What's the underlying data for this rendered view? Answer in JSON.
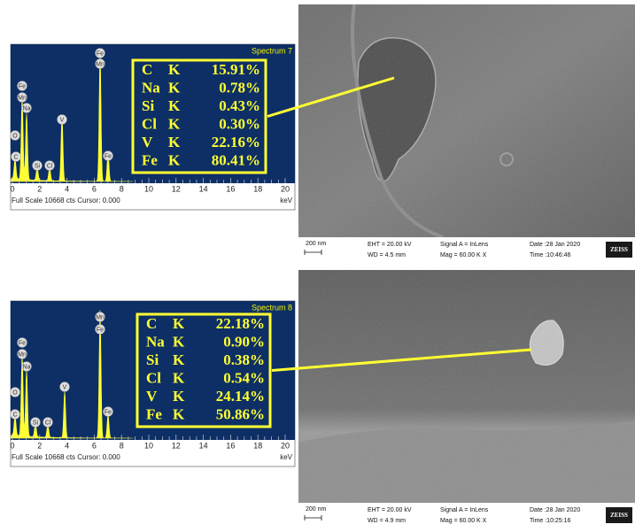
{
  "panels": [
    {
      "spectrum": {
        "title": "Spectrum 7",
        "peak_labels": [
          "Fe",
          "Mn",
          "Fe",
          "Mn",
          "Na",
          "O",
          "C",
          "Si",
          "Cl",
          "V",
          "Fe"
        ],
        "axis_ticks": [
          "0",
          "2",
          "4",
          "6",
          "8",
          "10",
          "12",
          "14",
          "16",
          "18",
          "20"
        ],
        "axis_unit": "keV",
        "footer": "Full Scale 10668 cts Cursor: 0.000"
      },
      "composition": [
        [
          "C",
          "K",
          "15.91%"
        ],
        [
          "Na",
          "K",
          "0.78%"
        ],
        [
          "Si",
          "K",
          "0.43%"
        ],
        [
          "Cl",
          "K",
          "0.30%"
        ],
        [
          "V",
          "K",
          "22.16%"
        ],
        [
          "Fe",
          "K",
          "80.41%"
        ]
      ],
      "sem": {
        "scale_bar": "200 nm",
        "eht": "EHT = 20.00 kV",
        "wd": "WD = 4.5 mm",
        "signal": "Signal A = InLens",
        "mag": "Mag =  60.00 K X",
        "date": "Date :28 Jan 2020",
        "time": "Time :10:46:46",
        "brand": "ZEISS"
      }
    },
    {
      "spectrum": {
        "title": "Spectrum 8",
        "peak_labels": [
          "Mn",
          "Fe",
          "Fe",
          "Mn",
          "Na",
          "O",
          "C",
          "Si",
          "Cl",
          "V",
          "Fe"
        ],
        "axis_ticks": [
          "0",
          "2",
          "4",
          "6",
          "8",
          "10",
          "12",
          "14",
          "16",
          "18",
          "20"
        ],
        "axis_unit": "keV",
        "footer": "Full Scale 10668 cts Cursor: 0.000"
      },
      "composition": [
        [
          "C",
          "K",
          "22.18%"
        ],
        [
          "Na",
          "K",
          "0.90%"
        ],
        [
          "Si",
          "K",
          "0.38%"
        ],
        [
          "Cl",
          "K",
          "0.54%"
        ],
        [
          "V",
          "K",
          "24.14%"
        ],
        [
          "Fe",
          "K",
          "50.86%"
        ]
      ],
      "sem": {
        "scale_bar": "200 nm",
        "eht": "EHT = 20.00 kV",
        "wd": "WD = 4.9 mm",
        "signal": "Signal A = InLens",
        "mag": "Mag =  60.00 K X",
        "date": "Date :28 Jan 2020",
        "time": "Time :10:25:16",
        "brand": "ZEISS"
      }
    }
  ]
}
